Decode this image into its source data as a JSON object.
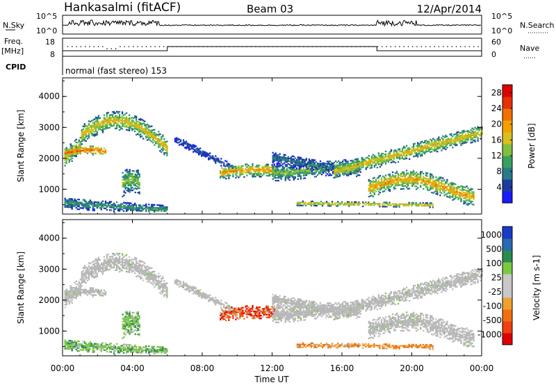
{
  "header": {
    "radar": "Hankasalmi (fitACF)",
    "beam": "Beam 03",
    "date": "12/Apr/2014"
  },
  "status_panel": {
    "nsky_label": "N.Sky",
    "nsearch_label": "N.Search",
    "nsky_ticks": [
      "10^5",
      "10^0"
    ],
    "nsearch_ticks": [
      "10^5",
      "10^0"
    ]
  },
  "freq_panel": {
    "label_line1": "Freq.",
    "label_line2": "[MHz]",
    "freq_ticks": [
      "18",
      "8"
    ],
    "nave_ticks": [
      "60",
      "0"
    ],
    "nave_label": "Nave"
  },
  "cpid": {
    "label": "CPID",
    "mode": "normal (fast stereo) 153"
  },
  "colors": {
    "power": [
      "#1a1aff",
      "#1e3ca0",
      "#2a7a8a",
      "#3aa060",
      "#80c040",
      "#d8c020",
      "#f5a000",
      "#f07000",
      "#e83000",
      "#e00000"
    ],
    "velocity": [
      "#1a3ac8",
      "#2a6ab0",
      "#2a8a50",
      "#7ac840",
      "#c8c8c8",
      "#c8c8c8",
      "#f0a030",
      "#f07010",
      "#f04010",
      "#e00000"
    ],
    "ground": "#b8b8b8"
  },
  "chart_data": [
    {
      "type": "heatmap",
      "name": "power",
      "ylabel": "Slant Range [km]",
      "y_ticks": [
        1000,
        2000,
        3000,
        4000
      ],
      "ylim": [
        200,
        4600
      ],
      "colorbar_label": "Power [dB]",
      "colorbar_ticks": [
        "4",
        "8",
        "12",
        "16",
        "20",
        "24",
        "28"
      ],
      "colorbar_range": [
        0,
        30
      ]
    },
    {
      "type": "heatmap",
      "name": "velocity",
      "ylabel": "Slant Range [km]",
      "y_ticks": [
        1000,
        2000,
        3000,
        4000
      ],
      "ylim": [
        200,
        4600
      ],
      "colorbar_label": "Velocity [m s-1]",
      "colorbar_ticks": [
        "1000",
        "500",
        "100",
        "25",
        "-25",
        "-100",
        "-500",
        "-1000"
      ]
    }
  ],
  "x_axis": {
    "label": "Time UT",
    "ticks": [
      "00:00",
      "04:00",
      "08:00",
      "12:00",
      "16:00",
      "20:00",
      "00:00"
    ],
    "xlim": [
      0,
      24
    ]
  }
}
